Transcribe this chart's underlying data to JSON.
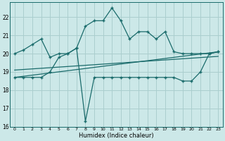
{
  "xlabel": "Humidex (Indice chaleur)",
  "background_color": "#cce8e8",
  "grid_color": "#aacece",
  "line_color": "#1a6b6b",
  "xlim": [
    -0.5,
    23.5
  ],
  "ylim": [
    16,
    22.8
  ],
  "yticks": [
    16,
    17,
    18,
    19,
    20,
    21,
    22
  ],
  "xticks": [
    0,
    1,
    2,
    3,
    4,
    5,
    6,
    7,
    8,
    9,
    10,
    11,
    12,
    13,
    14,
    15,
    16,
    17,
    18,
    19,
    20,
    21,
    22,
    23
  ],
  "series1_x": [
    0,
    1,
    2,
    3,
    4,
    5,
    6,
    7,
    8,
    9,
    10,
    11,
    12,
    13,
    14,
    15,
    16,
    17,
    18,
    19,
    20,
    21,
    22,
    23
  ],
  "series1_y": [
    20.0,
    20.2,
    20.5,
    20.8,
    19.8,
    20.0,
    20.0,
    20.3,
    21.5,
    21.8,
    21.8,
    22.5,
    21.8,
    20.8,
    21.2,
    21.2,
    20.8,
    21.2,
    20.1,
    20.0,
    20.0,
    20.0,
    20.0,
    20.1
  ],
  "series2_x": [
    0,
    1,
    2,
    3,
    4,
    5,
    6,
    7,
    8,
    9,
    10,
    11,
    12,
    13,
    14,
    15,
    16,
    17,
    18,
    19,
    20,
    21,
    22,
    23
  ],
  "series2_y": [
    18.7,
    18.7,
    18.7,
    18.7,
    19.0,
    19.8,
    20.0,
    20.3,
    16.3,
    18.7,
    18.7,
    18.7,
    18.7,
    18.7,
    18.7,
    18.7,
    18.7,
    18.7,
    18.7,
    18.5,
    18.5,
    19.0,
    20.0,
    20.1
  ],
  "series3_x": [
    0,
    23
  ],
  "series3_y": [
    18.7,
    20.1
  ],
  "series4_x": [
    0,
    23
  ],
  "series4_y": [
    19.1,
    19.85
  ]
}
